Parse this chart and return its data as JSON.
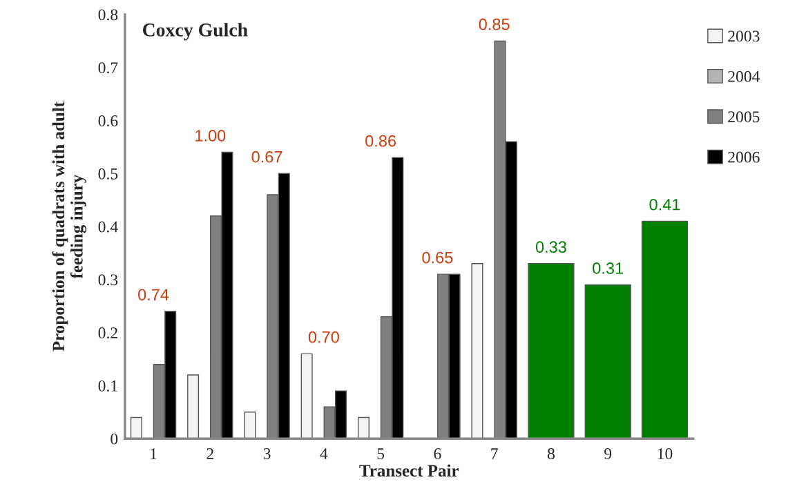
{
  "chart_data": {
    "type": "bar",
    "title": "Coxcy Gulch",
    "xlabel": "Transect Pair",
    "ylabel": "Proportion of quadrats with adult\nfeeding injury",
    "categories": [
      "1",
      "2",
      "3",
      "4",
      "5",
      "6",
      "7",
      "8",
      "9",
      "10"
    ],
    "series": [
      {
        "name": "2003",
        "color": "#f4f4f4",
        "values": [
          0.04,
          0.12,
          0.05,
          0.16,
          0.04,
          null,
          0.33,
          null,
          null,
          null
        ]
      },
      {
        "name": "2004",
        "color": "#b4b4b4",
        "values": [
          null,
          null,
          null,
          null,
          null,
          null,
          null,
          null,
          null,
          null
        ]
      },
      {
        "name": "2005",
        "color": "#808080",
        "values": [
          0.14,
          0.42,
          0.46,
          0.06,
          0.23,
          0.31,
          0.75,
          null,
          null,
          null
        ]
      },
      {
        "name": "2006",
        "color": "#000000",
        "values": [
          0.24,
          0.54,
          0.5,
          0.09,
          0.53,
          0.31,
          0.56,
          null,
          null,
          null
        ]
      },
      {
        "color": "#008000",
        "values": [
          null,
          null,
          null,
          null,
          null,
          null,
          null,
          0.33,
          0.29,
          0.41
        ]
      }
    ],
    "ylim": [
      0,
      0.8
    ],
    "yticks": [
      0,
      0.1,
      0.2,
      0.3,
      0.4,
      0.5,
      0.6,
      0.7,
      0.8
    ],
    "annotations": [
      "0.74",
      "1.00",
      "0.67",
      "0.70",
      "0.86",
      "0.65",
      "0.85",
      "0.33",
      "0.31",
      "0.41"
    ],
    "legend": "top right",
    "grid": false
  }
}
